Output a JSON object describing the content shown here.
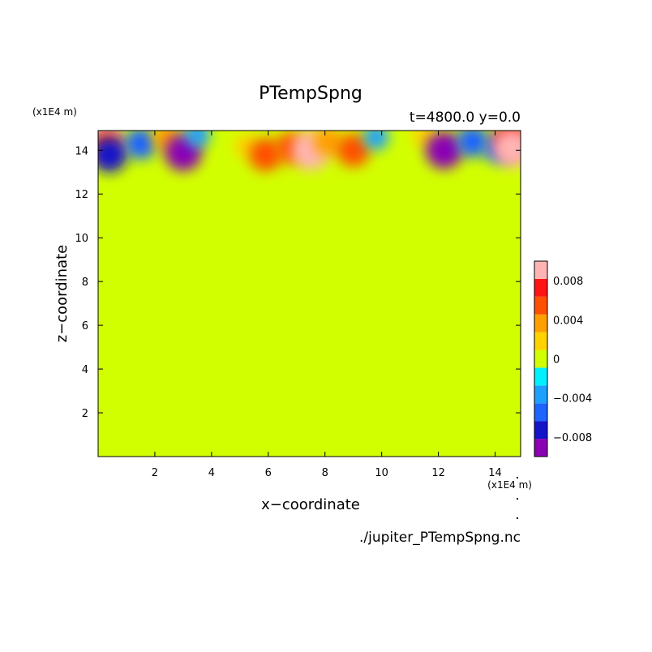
{
  "chart_data": {
    "type": "heatmap",
    "title": "PTempSpng",
    "subtitle": "t=4800.0 y=0.0",
    "xlabel": "x−coordinate",
    "ylabel": "z−coordinate",
    "x_unit": "(x1E4 m)",
    "y_unit": "(x1E4 m)",
    "xlim": [
      0,
      14.9
    ],
    "ylim": [
      0,
      14.9
    ],
    "xticks": [
      2,
      4,
      6,
      8,
      10,
      12,
      14
    ],
    "yticks": [
      2,
      4,
      6,
      8,
      10,
      12,
      14
    ],
    "source_file": "./jupiter_PTempSpng.nc",
    "background_value": 0,
    "colorbar": {
      "levels": [
        -0.01,
        -0.008,
        -0.006,
        -0.004,
        -0.002,
        0,
        0.002,
        0.004,
        0.006,
        0.008,
        0.01
      ],
      "colors": [
        "#8b00b4",
        "#1414c8",
        "#1e64ff",
        "#1ea0ff",
        "#00f0ff",
        "#d2ff00",
        "#ffd200",
        "#ffa000",
        "#ff5000",
        "#ff1414",
        "#ffb4b4"
      ],
      "tick_values": [
        -0.008,
        -0.004,
        0,
        0.004,
        0.008
      ],
      "tick_labels": [
        "−0.008",
        "−0.004",
        "0",
        "0.004",
        "0.008"
      ]
    },
    "features": [
      {
        "x": 0.2,
        "z": 14.5,
        "value": 0.01
      },
      {
        "x": 0.3,
        "z": 14.2,
        "value": 0.006
      },
      {
        "x": 0.4,
        "z": 13.8,
        "value": -0.008
      },
      {
        "x": 1.5,
        "z": 14.3,
        "value": -0.006
      },
      {
        "x": 2.4,
        "z": 14.6,
        "value": 0.004
      },
      {
        "x": 3.0,
        "z": 13.9,
        "value": -0.009
      },
      {
        "x": 3.5,
        "z": 14.7,
        "value": -0.003
      },
      {
        "x": 5.2,
        "z": 14.2,
        "value": 0.002
      },
      {
        "x": 5.9,
        "z": 13.8,
        "value": 0.007
      },
      {
        "x": 6.8,
        "z": 14.1,
        "value": 0.006
      },
      {
        "x": 7.5,
        "z": 14.0,
        "value": 0.01
      },
      {
        "x": 8.1,
        "z": 14.4,
        "value": 0.005
      },
      {
        "x": 9.0,
        "z": 14.0,
        "value": 0.007
      },
      {
        "x": 9.8,
        "z": 14.6,
        "value": -0.003
      },
      {
        "x": 11.5,
        "z": 14.7,
        "value": 0.003
      },
      {
        "x": 12.2,
        "z": 14.0,
        "value": -0.009
      },
      {
        "x": 13.2,
        "z": 14.4,
        "value": -0.006
      },
      {
        "x": 14.1,
        "z": 14.1,
        "value": -0.005
      },
      {
        "x": 14.6,
        "z": 14.5,
        "value": 0.008
      },
      {
        "x": 14.6,
        "z": 14.1,
        "value": 0.01
      }
    ]
  }
}
